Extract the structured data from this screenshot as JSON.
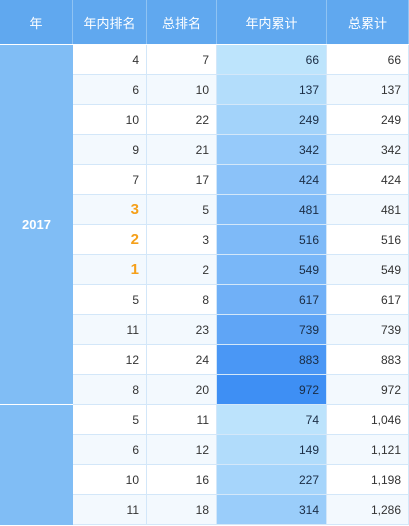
{
  "table": {
    "headers": [
      "年",
      "年内排名",
      "总排名",
      "年内累计",
      "总累计"
    ],
    "groups": [
      {
        "year": "2017",
        "rows": [
          {
            "rank_in_year": "4",
            "total_rank": "7",
            "ytd": "66",
            "cumulative": "66",
            "ytd_value": 66
          },
          {
            "rank_in_year": "6",
            "total_rank": "10",
            "ytd": "137",
            "cumulative": "137",
            "ytd_value": 137
          },
          {
            "rank_in_year": "10",
            "total_rank": "22",
            "ytd": "249",
            "cumulative": "249",
            "ytd_value": 249
          },
          {
            "rank_in_year": "9",
            "total_rank": "21",
            "ytd": "342",
            "cumulative": "342",
            "ytd_value": 342
          },
          {
            "rank_in_year": "7",
            "total_rank": "17",
            "ytd": "424",
            "cumulative": "424",
            "ytd_value": 424
          },
          {
            "rank_in_year": "3",
            "total_rank": "5",
            "ytd": "481",
            "cumulative": "481",
            "ytd_value": 481,
            "medal": true
          },
          {
            "rank_in_year": "2",
            "total_rank": "3",
            "ytd": "516",
            "cumulative": "516",
            "ytd_value": 516,
            "medal": true
          },
          {
            "rank_in_year": "1",
            "total_rank": "2",
            "ytd": "549",
            "cumulative": "549",
            "ytd_value": 549,
            "medal": true
          },
          {
            "rank_in_year": "5",
            "total_rank": "8",
            "ytd": "617",
            "cumulative": "617",
            "ytd_value": 617
          },
          {
            "rank_in_year": "11",
            "total_rank": "23",
            "ytd": "739",
            "cumulative": "739",
            "ytd_value": 739
          },
          {
            "rank_in_year": "12",
            "total_rank": "24",
            "ytd": "883",
            "cumulative": "883",
            "ytd_value": 883
          },
          {
            "rank_in_year": "8",
            "total_rank": "20",
            "ytd": "972",
            "cumulative": "972",
            "ytd_value": 972
          }
        ]
      },
      {
        "year": "",
        "rows": [
          {
            "rank_in_year": "5",
            "total_rank": "11",
            "ytd": "74",
            "cumulative": "1,046",
            "ytd_value": 74
          },
          {
            "rank_in_year": "6",
            "total_rank": "12",
            "ytd": "149",
            "cumulative": "1,121",
            "ytd_value": 149
          },
          {
            "rank_in_year": "10",
            "total_rank": "16",
            "ytd": "227",
            "cumulative": "1,198",
            "ytd_value": 227
          },
          {
            "rank_in_year": "11",
            "total_rank": "18",
            "ytd": "314",
            "cumulative": "1,286",
            "ytd_value": 314
          }
        ]
      }
    ]
  },
  "colors": {
    "header_bg": "#60a8ef",
    "year_bg": "#80bdf5",
    "medal": "#f5a01a",
    "heat_low": "#bde4fc",
    "heat_high": "#3e8ff4"
  }
}
